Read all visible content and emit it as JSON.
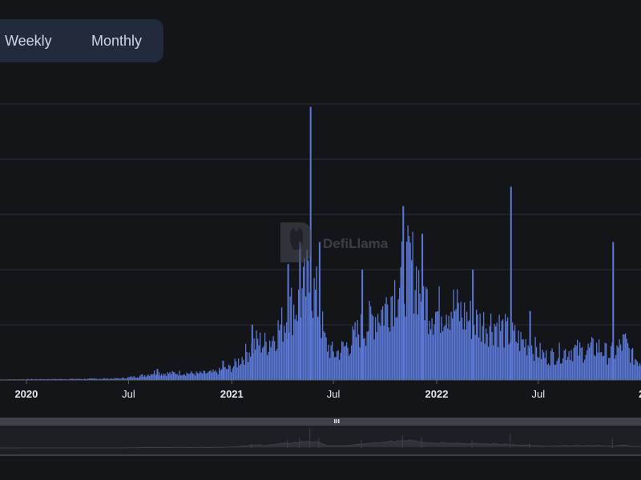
{
  "toggle": {
    "weekly_label": "Weekly",
    "monthly_label": "Monthly"
  },
  "watermark": {
    "text": "DefiLlama"
  },
  "colors": {
    "bar": "#5b78d6",
    "grid": "#2b2e36",
    "background": "#141519",
    "text": "#e6e8ee"
  },
  "chart_data": {
    "type": "bar",
    "title": "",
    "xlabel": "",
    "ylabel": "",
    "grid": true,
    "legend": "none",
    "x_range": [
      "2019-11-15",
      "2022-12-31"
    ],
    "x_ticks": [
      {
        "date": "2020-01-01",
        "label": "2020",
        "bold": true
      },
      {
        "date": "2020-07-01",
        "label": "Jul",
        "bold": false
      },
      {
        "date": "2021-01-01",
        "label": "2021",
        "bold": true
      },
      {
        "date": "2021-07-01",
        "label": "Jul",
        "bold": false
      },
      {
        "date": "2022-01-01",
        "label": "2022",
        "bold": true
      },
      {
        "date": "2022-07-01",
        "label": "Jul",
        "bold": false
      },
      {
        "date": "2023-01-01",
        "label": "2",
        "bold": true
      }
    ],
    "y_range": [
      0,
      100
    ],
    "y_gridlines": [
      20,
      40,
      60,
      80,
      100
    ],
    "series": [
      {
        "x": [
          "2019-11-15",
          "2020-01-01",
          "2020-04-01",
          "2020-06-15",
          "2020-07-01",
          "2020-08-01",
          "2020-08-15",
          "2020-09-01",
          "2020-10-01",
          "2020-11-01",
          "2020-12-01",
          "2021-01-01",
          "2021-01-15",
          "2021-02-01",
          "2021-02-15",
          "2021-03-01",
          "2021-03-15",
          "2021-04-01",
          "2021-04-15",
          "2021-05-01",
          "2021-05-15",
          "2021-06-01",
          "2021-06-15",
          "2021-07-01",
          "2021-07-15",
          "2021-08-01",
          "2021-08-15",
          "2021-09-01",
          "2021-09-15",
          "2021-10-01",
          "2021-10-15",
          "2021-11-01",
          "2021-11-15",
          "2021-12-01",
          "2021-12-15",
          "2022-01-01",
          "2022-01-15",
          "2022-02-01",
          "2022-02-15",
          "2022-03-01",
          "2022-03-15",
          "2022-04-01",
          "2022-04-15",
          "2022-05-01",
          "2022-05-15",
          "2022-06-01",
          "2022-06-15",
          "2022-07-01",
          "2022-07-15",
          "2022-08-01",
          "2022-08-15",
          "2022-09-01",
          "2022-09-15",
          "2022-10-01",
          "2022-10-15",
          "2022-11-01",
          "2022-11-15",
          "2022-12-01",
          "2022-12-15",
          "2022-12-31"
        ],
        "values": [
          0.2,
          0.3,
          0.4,
          0.6,
          1,
          2,
          3,
          2.5,
          2.8,
          2.5,
          3,
          5,
          8,
          12,
          15,
          14,
          17,
          22,
          28,
          30,
          38,
          32,
          15,
          10,
          12,
          15,
          19,
          22,
          26,
          28,
          35,
          40,
          45,
          38,
          30,
          26,
          30,
          28,
          25,
          24,
          22,
          22,
          22,
          19,
          17,
          15,
          14,
          11,
          9,
          10,
          11,
          12,
          11,
          12,
          13,
          10,
          11,
          15,
          9,
          7
        ],
        "spikes": [
          {
            "date": "2020-08-20",
            "value": 4
          },
          {
            "date": "2020-12-15",
            "value": 7
          },
          {
            "date": "2021-02-05",
            "value": 20
          },
          {
            "date": "2021-04-10",
            "value": 42
          },
          {
            "date": "2021-05-01",
            "value": 50
          },
          {
            "date": "2021-05-20",
            "value": 99
          },
          {
            "date": "2021-06-05",
            "value": 50
          },
          {
            "date": "2021-08-20",
            "value": 40
          },
          {
            "date": "2021-11-01",
            "value": 63
          },
          {
            "date": "2021-12-05",
            "value": 53
          },
          {
            "date": "2022-03-05",
            "value": 40
          },
          {
            "date": "2022-05-12",
            "value": 70
          },
          {
            "date": "2022-06-15",
            "value": 25
          },
          {
            "date": "2022-11-10",
            "value": 50
          }
        ]
      }
    ]
  }
}
